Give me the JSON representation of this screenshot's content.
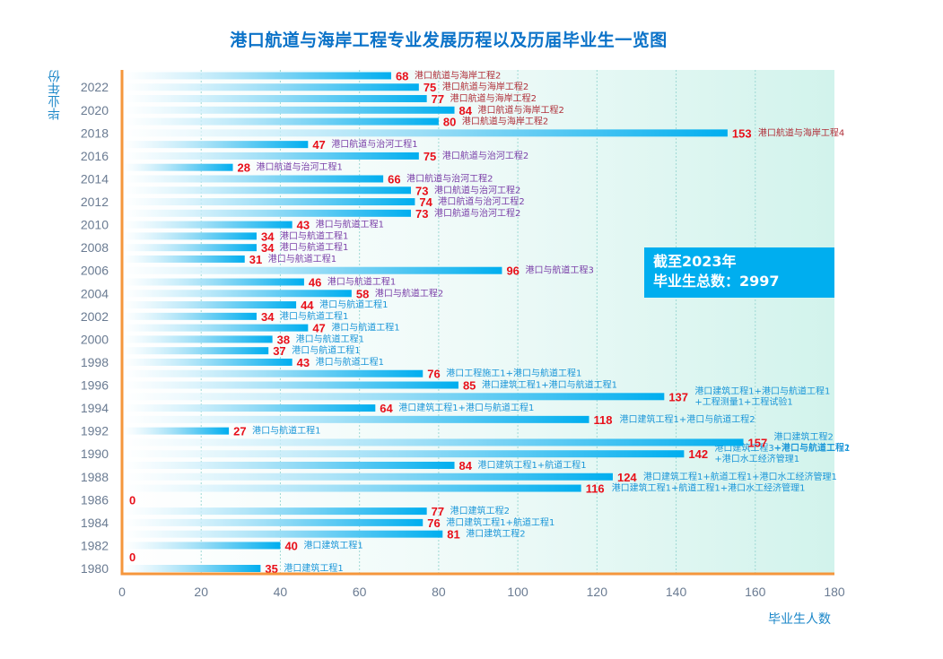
{
  "chart_data": {
    "type": "bar",
    "orientation": "horizontal",
    "title": "港口航道与海岸工程专业发展历程以及历届毕业生一览图",
    "xlabel": "毕业生人数",
    "ylabel": "毕业年份",
    "xlim": [
      0,
      180
    ],
    "xticks": [
      "0",
      "20",
      "40",
      "60",
      "80",
      "100",
      "120",
      "140",
      "160",
      "180"
    ],
    "yticks": [
      "1980",
      "1982",
      "1984",
      "1986",
      "1988",
      "1990",
      "1992",
      "1994",
      "1996",
      "1998",
      "2000",
      "2002",
      "2004",
      "2006",
      "2008",
      "2010",
      "2012",
      "2014",
      "2016",
      "2018",
      "2020",
      "2022"
    ],
    "grid": "vertical dashed",
    "colors": {
      "bar": "#00aeef",
      "value_label": "#e8101a",
      "label_coastal": "#b0303a",
      "label_river_and_channel": "#7a3fa8",
      "label_early": "#1a96d8",
      "axis_frame": "#f5963c",
      "title": "#0a72c8"
    },
    "annotation": {
      "line1": "截至2023年",
      "line2": "毕业生总数：2997"
    },
    "bars": [
      {
        "year": "1980",
        "value": 35,
        "label": [
          "港口建筑工程1"
        ],
        "group": "early"
      },
      {
        "year": "1981",
        "value": 0,
        "label": [],
        "group": "early"
      },
      {
        "year": "1982",
        "value": 40,
        "label": [
          "港口建筑工程1"
        ],
        "group": "early"
      },
      {
        "year": "1983",
        "value": 81,
        "label": [
          "港口建筑工程2"
        ],
        "group": "early"
      },
      {
        "year": "1984",
        "value": 76,
        "label": [
          "港口建筑工程1+航道工程1"
        ],
        "group": "early"
      },
      {
        "year": "1985",
        "value": 77,
        "label": [
          "港口建筑工程2"
        ],
        "group": "early"
      },
      {
        "year": "1986",
        "value": 0,
        "label": [],
        "group": "early"
      },
      {
        "year": "1987",
        "value": 116,
        "label": [
          "港口建筑工程1+航道工程1+港口水工经济管理1"
        ],
        "group": "early"
      },
      {
        "year": "1988",
        "value": 124,
        "label": [
          "港口建筑工程1+航道工程1+港口水工经济管理1"
        ],
        "group": "early"
      },
      {
        "year": "1989",
        "value": 84,
        "label": [
          "港口建筑工程1+航道工程1"
        ],
        "group": "early"
      },
      {
        "year": "1990",
        "value": 142,
        "label": [
          "港口建筑工程3+港口与航道工程1",
          "+港口水工经济管理1"
        ],
        "group": "early"
      },
      {
        "year": "1991",
        "value": 157,
        "label": [
          "港口建筑工程2",
          "+港口与航道工程2"
        ],
        "group": "early"
      },
      {
        "year": "1992",
        "value": 27,
        "label": [
          "港口与航道工程1"
        ],
        "group": "early"
      },
      {
        "year": "1993",
        "value": 118,
        "label": [
          "港口建筑工程1+港口与航道工程2"
        ],
        "group": "early"
      },
      {
        "year": "1994",
        "value": 64,
        "label": [
          "港口建筑工程1+港口与航道工程1"
        ],
        "group": "early"
      },
      {
        "year": "1995",
        "value": 137,
        "label": [
          "港口建筑工程1+港口与航道工程1",
          "+工程测量1+工程试验1"
        ],
        "group": "early"
      },
      {
        "year": "1996",
        "value": 85,
        "label": [
          "港口建筑工程1+港口与航道工程1"
        ],
        "group": "early"
      },
      {
        "year": "1997",
        "value": 76,
        "label": [
          "港口工程施工1+港口与航道工程1"
        ],
        "group": "early"
      },
      {
        "year": "1998",
        "value": 43,
        "label": [
          "港口与航道工程1"
        ],
        "group": "early"
      },
      {
        "year": "1999",
        "value": 37,
        "label": [
          "港口与航道工程1"
        ],
        "group": "early"
      },
      {
        "year": "2000",
        "value": 38,
        "label": [
          "港口与航道工程1"
        ],
        "group": "early"
      },
      {
        "year": "2001",
        "value": 47,
        "label": [
          "港口与航道工程1"
        ],
        "group": "early"
      },
      {
        "year": "2002",
        "value": 34,
        "label": [
          "港口与航道工程1"
        ],
        "group": "early"
      },
      {
        "year": "2003",
        "value": 44,
        "label": [
          "港口与航道工程1"
        ],
        "group": "early"
      },
      {
        "year": "2004",
        "value": 58,
        "label": [
          "港口与航道工程2"
        ],
        "group": "river"
      },
      {
        "year": "2005",
        "value": 46,
        "label": [
          "港口与航道工程1"
        ],
        "group": "river"
      },
      {
        "year": "2006",
        "value": 96,
        "label": [
          "港口与航道工程3"
        ],
        "group": "river"
      },
      {
        "year": "2007",
        "value": 31,
        "label": [
          "港口与航道工程1"
        ],
        "group": "river"
      },
      {
        "year": "2008",
        "value": 34,
        "label": [
          "港口与航道工程1"
        ],
        "group": "river"
      },
      {
        "year": "2009",
        "value": 34,
        "label": [
          "港口与航道工程1"
        ],
        "group": "river"
      },
      {
        "year": "2010",
        "value": 43,
        "label": [
          "港口与航道工程1"
        ],
        "group": "river"
      },
      {
        "year": "2011",
        "value": 73,
        "label": [
          "港口航道与治河工程2"
        ],
        "group": "river"
      },
      {
        "year": "2012",
        "value": 74,
        "label": [
          "港口航道与治河工程2"
        ],
        "group": "river"
      },
      {
        "year": "2013",
        "value": 73,
        "label": [
          "港口航道与治河工程2"
        ],
        "group": "river"
      },
      {
        "year": "2014",
        "value": 66,
        "label": [
          "港口航道与治河工程2"
        ],
        "group": "river"
      },
      {
        "year": "2015",
        "value": 28,
        "label": [
          "港口航道与治河工程1"
        ],
        "group": "river"
      },
      {
        "year": "2016",
        "value": 75,
        "label": [
          "港口航道与治河工程2"
        ],
        "group": "river"
      },
      {
        "year": "2017",
        "value": 47,
        "label": [
          "港口航道与治河工程1"
        ],
        "group": "river"
      },
      {
        "year": "2018",
        "value": 153,
        "label": [
          "港口航道与海岸工程4"
        ],
        "group": "coastal"
      },
      {
        "year": "2019",
        "value": 80,
        "label": [
          "港口航道与海岸工程2"
        ],
        "group": "coastal"
      },
      {
        "year": "2020",
        "value": 84,
        "label": [
          "港口航道与海岸工程2"
        ],
        "group": "coastal"
      },
      {
        "year": "2021",
        "value": 77,
        "label": [
          "港口航道与海岸工程2"
        ],
        "group": "coastal"
      },
      {
        "year": "2022",
        "value": 75,
        "label": [
          "港口航道与海岸工程2"
        ],
        "group": "coastal"
      },
      {
        "year": "2023",
        "value": 68,
        "label": [
          "港口航道与海岸工程2"
        ],
        "group": "coastal"
      }
    ]
  }
}
